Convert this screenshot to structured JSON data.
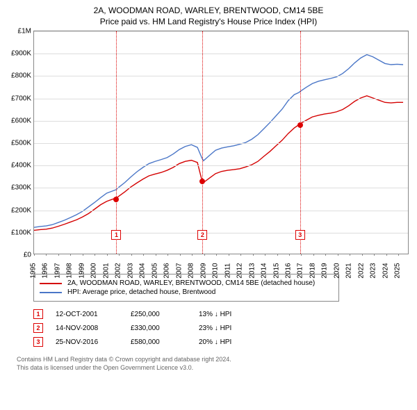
{
  "title": {
    "line1": "2A, WOODMAN ROAD, WARLEY, BRENTWOOD, CM14 5BE",
    "line2": "Price paid vs. HM Land Registry's House Price Index (HPI)"
  },
  "chart": {
    "type": "line",
    "background_color": "#ffffff",
    "grid_color": "#dddddd",
    "border_color": "#888888",
    "y": {
      "min": 0,
      "max": 1000000,
      "step": 100000,
      "labels": [
        "£0",
        "£100K",
        "£200K",
        "£300K",
        "£400K",
        "£500K",
        "£600K",
        "£700K",
        "£800K",
        "£900K",
        "£1M"
      ]
    },
    "x": {
      "min": 1995,
      "max": 2025.9,
      "ticks": [
        1995,
        1996,
        1997,
        1998,
        1999,
        2000,
        2001,
        2002,
        2003,
        2004,
        2005,
        2006,
        2007,
        2008,
        2009,
        2010,
        2011,
        2012,
        2013,
        2014,
        2015,
        2016,
        2017,
        2018,
        2019,
        2020,
        2021,
        2022,
        2023,
        2024,
        2025
      ]
    },
    "series": [
      {
        "name": "property",
        "label": "2A, WOODMAN ROAD, WARLEY, BRENTWOOD, CM14 5BE (detached house)",
        "color": "#d40000",
        "width": 1.4,
        "points": [
          [
            1995,
            105000
          ],
          [
            1995.5,
            108000
          ],
          [
            1996,
            110000
          ],
          [
            1996.5,
            115000
          ],
          [
            1997,
            123000
          ],
          [
            1997.5,
            132000
          ],
          [
            1998,
            142000
          ],
          [
            1998.5,
            152000
          ],
          [
            1999,
            165000
          ],
          [
            1999.5,
            180000
          ],
          [
            2000,
            200000
          ],
          [
            2000.5,
            220000
          ],
          [
            2001,
            235000
          ],
          [
            2001.5,
            245000
          ],
          [
            2001.78,
            250000
          ],
          [
            2002,
            258000
          ],
          [
            2002.5,
            278000
          ],
          [
            2003,
            300000
          ],
          [
            2003.5,
            318000
          ],
          [
            2004,
            335000
          ],
          [
            2004.5,
            350000
          ],
          [
            2005,
            358000
          ],
          [
            2005.5,
            365000
          ],
          [
            2006,
            375000
          ],
          [
            2006.5,
            388000
          ],
          [
            2007,
            405000
          ],
          [
            2007.5,
            415000
          ],
          [
            2008,
            420000
          ],
          [
            2008.5,
            410000
          ],
          [
            2008.87,
            330000
          ],
          [
            2009,
            320000
          ],
          [
            2009.5,
            340000
          ],
          [
            2010,
            360000
          ],
          [
            2010.5,
            370000
          ],
          [
            2011,
            375000
          ],
          [
            2011.5,
            378000
          ],
          [
            2012,
            382000
          ],
          [
            2012.5,
            390000
          ],
          [
            2013,
            400000
          ],
          [
            2013.5,
            415000
          ],
          [
            2014,
            438000
          ],
          [
            2014.5,
            460000
          ],
          [
            2015,
            485000
          ],
          [
            2015.5,
            510000
          ],
          [
            2016,
            540000
          ],
          [
            2016.5,
            565000
          ],
          [
            2016.9,
            580000
          ],
          [
            2017,
            585000
          ],
          [
            2017.5,
            600000
          ],
          [
            2018,
            615000
          ],
          [
            2018.5,
            622000
          ],
          [
            2019,
            628000
          ],
          [
            2019.5,
            632000
          ],
          [
            2020,
            638000
          ],
          [
            2020.5,
            648000
          ],
          [
            2021,
            665000
          ],
          [
            2021.5,
            685000
          ],
          [
            2022,
            700000
          ],
          [
            2022.5,
            710000
          ],
          [
            2023,
            700000
          ],
          [
            2023.5,
            690000
          ],
          [
            2024,
            680000
          ],
          [
            2024.5,
            678000
          ],
          [
            2025,
            680000
          ],
          [
            2025.5,
            680000
          ]
        ]
      },
      {
        "name": "hpi",
        "label": "HPI: Average price, detached house, Brentwood",
        "color": "#4a76c7",
        "width": 1.4,
        "points": [
          [
            1995,
            118000
          ],
          [
            1995.5,
            122000
          ],
          [
            1996,
            125000
          ],
          [
            1996.5,
            130000
          ],
          [
            1997,
            140000
          ],
          [
            1997.5,
            150000
          ],
          [
            1998,
            162000
          ],
          [
            1998.5,
            175000
          ],
          [
            1999,
            190000
          ],
          [
            1999.5,
            210000
          ],
          [
            2000,
            230000
          ],
          [
            2000.5,
            252000
          ],
          [
            2001,
            272000
          ],
          [
            2001.5,
            282000
          ],
          [
            2001.78,
            288000
          ],
          [
            2002,
            298000
          ],
          [
            2002.5,
            320000
          ],
          [
            2003,
            345000
          ],
          [
            2003.5,
            368000
          ],
          [
            2004,
            388000
          ],
          [
            2004.5,
            405000
          ],
          [
            2005,
            415000
          ],
          [
            2005.5,
            423000
          ],
          [
            2006,
            432000
          ],
          [
            2006.5,
            448000
          ],
          [
            2007,
            468000
          ],
          [
            2007.5,
            482000
          ],
          [
            2008,
            490000
          ],
          [
            2008.5,
            478000
          ],
          [
            2008.87,
            430000
          ],
          [
            2009,
            418000
          ],
          [
            2009.5,
            442000
          ],
          [
            2010,
            465000
          ],
          [
            2010.5,
            475000
          ],
          [
            2011,
            480000
          ],
          [
            2011.5,
            485000
          ],
          [
            2012,
            492000
          ],
          [
            2012.5,
            500000
          ],
          [
            2013,
            515000
          ],
          [
            2013.5,
            535000
          ],
          [
            2014,
            562000
          ],
          [
            2014.5,
            590000
          ],
          [
            2015,
            620000
          ],
          [
            2015.5,
            650000
          ],
          [
            2016,
            688000
          ],
          [
            2016.5,
            715000
          ],
          [
            2016.9,
            725000
          ],
          [
            2017,
            730000
          ],
          [
            2017.5,
            748000
          ],
          [
            2018,
            765000
          ],
          [
            2018.5,
            775000
          ],
          [
            2019,
            782000
          ],
          [
            2019.5,
            788000
          ],
          [
            2020,
            795000
          ],
          [
            2020.5,
            810000
          ],
          [
            2021,
            832000
          ],
          [
            2021.5,
            858000
          ],
          [
            2022,
            880000
          ],
          [
            2022.5,
            895000
          ],
          [
            2023,
            885000
          ],
          [
            2023.5,
            870000
          ],
          [
            2024,
            855000
          ],
          [
            2024.5,
            850000
          ],
          [
            2025,
            852000
          ],
          [
            2025.5,
            850000
          ]
        ]
      }
    ],
    "markers": [
      {
        "n": "1",
        "year": 2001.78,
        "box_y": 90000,
        "dot_y": 250000
      },
      {
        "n": "2",
        "year": 2008.87,
        "box_y": 90000,
        "dot_y": 330000
      },
      {
        "n": "3",
        "year": 2016.9,
        "box_y": 90000,
        "dot_y": 580000
      }
    ]
  },
  "legend": [
    {
      "color": "#d40000",
      "label": "2A, WOODMAN ROAD, WARLEY, BRENTWOOD, CM14 5BE (detached house)"
    },
    {
      "color": "#4a76c7",
      "label": "HPI: Average price, detached house, Brentwood"
    }
  ],
  "transactions": [
    {
      "n": "1",
      "date": "12-OCT-2001",
      "price": "£250,000",
      "diff": "13% ↓ HPI"
    },
    {
      "n": "2",
      "date": "14-NOV-2008",
      "price": "£330,000",
      "diff": "23% ↓ HPI"
    },
    {
      "n": "3",
      "date": "25-NOV-2016",
      "price": "£580,000",
      "diff": "20% ↓ HPI"
    }
  ],
  "footer": {
    "line1": "Contains HM Land Registry data © Crown copyright and database right 2024.",
    "line2": "This data is licensed under the Open Government Licence v3.0."
  }
}
